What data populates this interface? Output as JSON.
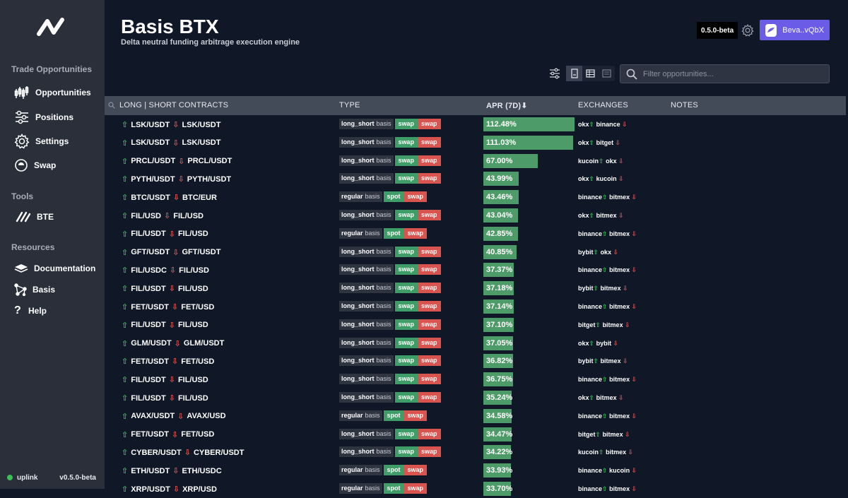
{
  "app": {
    "title": "Basis BTX",
    "subtitle": "Delta neutral funding arbitrage execution engine",
    "version_badge": "0.5.0-beta",
    "wallet_label": "Beva..vQbX"
  },
  "sidebar": {
    "sections": [
      {
        "title": "Trade Opportunities",
        "items": [
          {
            "label": "Opportunities",
            "icon": "candlestick-icon"
          },
          {
            "label": "Positions",
            "icon": "sliders-icon"
          },
          {
            "label": "Settings",
            "icon": "gear-icon"
          },
          {
            "label": "Swap",
            "icon": "swap-icon"
          }
        ]
      },
      {
        "title": "Tools",
        "items": [
          {
            "label": "BTE",
            "icon": "bte-logo-icon"
          }
        ]
      },
      {
        "title": "Resources",
        "items": [
          {
            "label": "Documentation",
            "icon": "book-icon"
          },
          {
            "label": "Basis",
            "icon": "network-icon"
          },
          {
            "label": "Help",
            "icon": "question-icon"
          }
        ]
      }
    ],
    "footer": {
      "status_label": "uplink",
      "version": "v0.5.0-beta"
    }
  },
  "toolbar": {
    "search_placeholder": "Filter opportunities..."
  },
  "table": {
    "headers": {
      "contracts": "LONG | SHORT CONTRACTS",
      "type": "TYPE",
      "apr": "APR (7D)",
      "apr_sort_arrow": "⬇",
      "exchanges": "EXCHANGES",
      "notes": "NOTES"
    },
    "basis_word": "basis",
    "rows": [
      {
        "long": "LSK/USDT",
        "short": "LSK/USDT",
        "type": "long_short",
        "long_kind": "swap",
        "short_kind": "swap",
        "apr": "112.48%",
        "apr_value": 112.48,
        "long_exchange": "okx",
        "short_exchange": "binance"
      },
      {
        "long": "LSK/USDT",
        "short": "LSK/USDT",
        "type": "long_short",
        "long_kind": "swap",
        "short_kind": "swap",
        "apr": "111.03%",
        "apr_value": 111.03,
        "long_exchange": "okx",
        "short_exchange": "bitget"
      },
      {
        "long": "PRCL/USDT",
        "short": "PRCL/USDT",
        "type": "long_short",
        "long_kind": "swap",
        "short_kind": "swap",
        "apr": "67.00%",
        "apr_value": 67.0,
        "long_exchange": "kucoin",
        "short_exchange": "okx"
      },
      {
        "long": "PYTH/USDT",
        "short": "PYTH/USDT",
        "type": "long_short",
        "long_kind": "swap",
        "short_kind": "swap",
        "apr": "43.99%",
        "apr_value": 43.99,
        "long_exchange": "okx",
        "short_exchange": "kucoin"
      },
      {
        "long": "BTC/USDT",
        "short": "BTC/EUR",
        "type": "regular",
        "long_kind": "spot",
        "short_kind": "swap",
        "apr": "43.46%",
        "apr_value": 43.46,
        "long_exchange": "binance",
        "short_exchange": "bitmex"
      },
      {
        "long": "FIL/USD",
        "short": "FIL/USD",
        "type": "long_short",
        "long_kind": "swap",
        "short_kind": "swap",
        "apr": "43.04%",
        "apr_value": 43.04,
        "long_exchange": "okx",
        "short_exchange": "bitmex"
      },
      {
        "long": "FIL/USDT",
        "short": "FIL/USD",
        "type": "regular",
        "long_kind": "spot",
        "short_kind": "swap",
        "apr": "42.85%",
        "apr_value": 42.85,
        "long_exchange": "binance",
        "short_exchange": "bitmex"
      },
      {
        "long": "GFT/USDT",
        "short": "GFT/USDT",
        "type": "long_short",
        "long_kind": "swap",
        "short_kind": "swap",
        "apr": "40.85%",
        "apr_value": 40.85,
        "long_exchange": "bybit",
        "short_exchange": "okx"
      },
      {
        "long": "FIL/USDC",
        "short": "FIL/USD",
        "type": "long_short",
        "long_kind": "swap",
        "short_kind": "swap",
        "apr": "37.37%",
        "apr_value": 37.37,
        "long_exchange": "binance",
        "short_exchange": "bitmex"
      },
      {
        "long": "FIL/USDT",
        "short": "FIL/USD",
        "type": "long_short",
        "long_kind": "swap",
        "short_kind": "swap",
        "apr": "37.18%",
        "apr_value": 37.18,
        "long_exchange": "bybit",
        "short_exchange": "bitmex"
      },
      {
        "long": "FET/USDT",
        "short": "FET/USD",
        "type": "long_short",
        "long_kind": "swap",
        "short_kind": "swap",
        "apr": "37.14%",
        "apr_value": 37.14,
        "long_exchange": "binance",
        "short_exchange": "bitmex"
      },
      {
        "long": "FIL/USDT",
        "short": "FIL/USD",
        "type": "long_short",
        "long_kind": "swap",
        "short_kind": "swap",
        "apr": "37.10%",
        "apr_value": 37.1,
        "long_exchange": "bitget",
        "short_exchange": "bitmex"
      },
      {
        "long": "GLM/USDT",
        "short": "GLM/USDT",
        "type": "long_short",
        "long_kind": "swap",
        "short_kind": "swap",
        "apr": "37.05%",
        "apr_value": 37.05,
        "long_exchange": "okx",
        "short_exchange": "bybit"
      },
      {
        "long": "FET/USDT",
        "short": "FET/USD",
        "type": "long_short",
        "long_kind": "swap",
        "short_kind": "swap",
        "apr": "36.82%",
        "apr_value": 36.82,
        "long_exchange": "bybit",
        "short_exchange": "bitmex"
      },
      {
        "long": "FIL/USDT",
        "short": "FIL/USD",
        "type": "long_short",
        "long_kind": "swap",
        "short_kind": "swap",
        "apr": "36.75%",
        "apr_value": 36.75,
        "long_exchange": "binance",
        "short_exchange": "bitmex"
      },
      {
        "long": "FIL/USDT",
        "short": "FIL/USD",
        "type": "long_short",
        "long_kind": "swap",
        "short_kind": "swap",
        "apr": "35.24%",
        "apr_value": 35.24,
        "long_exchange": "okx",
        "short_exchange": "bitmex"
      },
      {
        "long": "AVAX/USDT",
        "short": "AVAX/USD",
        "type": "regular",
        "long_kind": "spot",
        "short_kind": "swap",
        "apr": "34.58%",
        "apr_value": 34.58,
        "long_exchange": "binance",
        "short_exchange": "bitmex"
      },
      {
        "long": "FET/USDT",
        "short": "FET/USD",
        "type": "long_short",
        "long_kind": "swap",
        "short_kind": "swap",
        "apr": "34.47%",
        "apr_value": 34.47,
        "long_exchange": "bitget",
        "short_exchange": "bitmex"
      },
      {
        "long": "CYBER/USDT",
        "short": "CYBER/USDT",
        "type": "long_short",
        "long_kind": "swap",
        "short_kind": "swap",
        "apr": "34.22%",
        "apr_value": 34.22,
        "long_exchange": "kucoin",
        "short_exchange": "bitmex"
      },
      {
        "long": "ETH/USDT",
        "short": "ETH/USDC",
        "type": "regular",
        "long_kind": "spot",
        "short_kind": "swap",
        "apr": "33.93%",
        "apr_value": 33.93,
        "long_exchange": "binance",
        "short_exchange": "kucoin"
      },
      {
        "long": "XRP/USDT",
        "short": "XRP/USD",
        "type": "regular",
        "long_kind": "spot",
        "short_kind": "swap",
        "apr": "33.70%",
        "apr_value": 33.7,
        "long_exchange": "binance",
        "short_exchange": "bitmex"
      }
    ]
  },
  "colors": {
    "background": "#101727",
    "sidebar": "#2a2f3a",
    "accent": "#6b5ce7",
    "long_green": "#3f9e67",
    "short_red": "#d9534f",
    "apr_bar": "#4d9b68"
  }
}
